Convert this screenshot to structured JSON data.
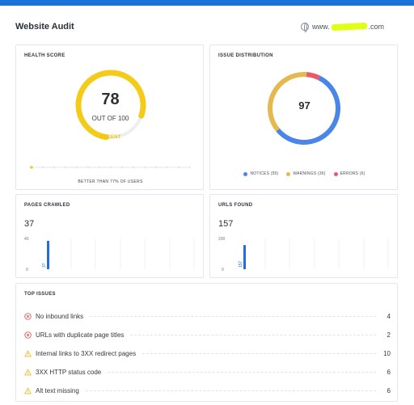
{
  "header": {
    "title": "Website Audit",
    "site_prefix": "www.",
    "site_suffix": ".com"
  },
  "health": {
    "label": "HEALTH SCORE",
    "score": "78",
    "out_of": "OUT OF 100",
    "rating": "DECENT",
    "better_than_prefix": "BETTER THAN ",
    "better_than_value": "77%",
    "better_than_suffix": " OF USERS",
    "score_fraction": 0.78,
    "accent": "#f5cb1a"
  },
  "distribution": {
    "label": "ISSUE DISTRIBUTION",
    "total": "97",
    "legend": [
      {
        "label": "NOTICES (55)",
        "value": 55,
        "color": "#4a86e8"
      },
      {
        "label": "WARNINGS (36)",
        "value": 36,
        "color": "#e6b94f"
      },
      {
        "label": "ERRORS (6)",
        "value": 6,
        "color": "#e85a6a"
      }
    ]
  },
  "pages_crawled": {
    "label": "PAGES CRAWLED",
    "value": "37",
    "axis_max": "40",
    "axis_min": "0",
    "bar_value": 37,
    "bar_max": 40,
    "bar_label": "37"
  },
  "urls_found": {
    "label": "URLS FOUND",
    "value": "157",
    "axis_max": "200",
    "axis_min": "0",
    "bar_value": 157,
    "bar_max": 200,
    "bar_label": "157"
  },
  "top_issues": {
    "label": "TOP ISSUES",
    "items": [
      {
        "icon": "error-icon",
        "label": "No inbound links",
        "count": "4"
      },
      {
        "icon": "error-icon",
        "label": "URLs with duplicate page titles",
        "count": "2"
      },
      {
        "icon": "warning-icon",
        "label": "Internal links to 3XX redirect pages",
        "count": "10"
      },
      {
        "icon": "warning-icon",
        "label": "3XX HTTP status code",
        "count": "6"
      },
      {
        "icon": "warning-icon",
        "label": "Alt text missing",
        "count": "6"
      }
    ]
  }
}
